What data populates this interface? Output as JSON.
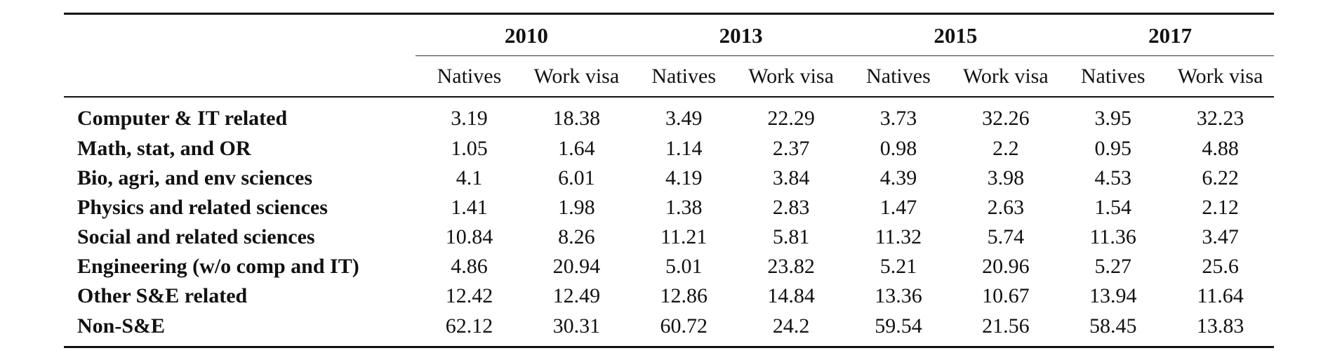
{
  "table": {
    "years": [
      "2010",
      "2013",
      "2015",
      "2017"
    ],
    "subheaders": [
      "Natives",
      "Work visa",
      "Natives",
      "Work visa",
      "Natives",
      "Work visa",
      "Natives",
      "Work visa"
    ],
    "rows": [
      {
        "label": "Computer & IT related",
        "values": [
          "3.19",
          "18.38",
          "3.49",
          "22.29",
          "3.73",
          "32.26",
          "3.95",
          "32.23"
        ]
      },
      {
        "label": "Math, stat, and OR",
        "values": [
          "1.05",
          "1.64",
          "1.14",
          "2.37",
          "0.98",
          "2.2",
          "0.95",
          "4.88"
        ]
      },
      {
        "label": "Bio, agri, and env sciences",
        "values": [
          "4.1",
          "6.01",
          "4.19",
          "3.84",
          "4.39",
          "3.98",
          "4.53",
          "6.22"
        ]
      },
      {
        "label": "Physics and related sciences",
        "values": [
          "1.41",
          "1.98",
          "1.38",
          "2.83",
          "1.47",
          "2.63",
          "1.54",
          "2.12"
        ]
      },
      {
        "label": "Social and related sciences",
        "values": [
          "10.84",
          "8.26",
          "11.21",
          "5.81",
          "11.32",
          "5.74",
          "11.36",
          "3.47"
        ]
      },
      {
        "label": "Engineering (w/o comp and IT)",
        "values": [
          "4.86",
          "20.94",
          "5.01",
          "23.82",
          "5.21",
          "20.96",
          "5.27",
          "25.6"
        ]
      },
      {
        "label": "Other S&E related",
        "values": [
          "12.42",
          "12.49",
          "12.86",
          "14.84",
          "13.36",
          "10.67",
          "13.94",
          "11.64"
        ]
      },
      {
        "label": "Non-S&E",
        "values": [
          "62.12",
          "30.31",
          "60.72",
          "24.2",
          "59.54",
          "21.56",
          "58.45",
          "13.83"
        ]
      }
    ]
  }
}
